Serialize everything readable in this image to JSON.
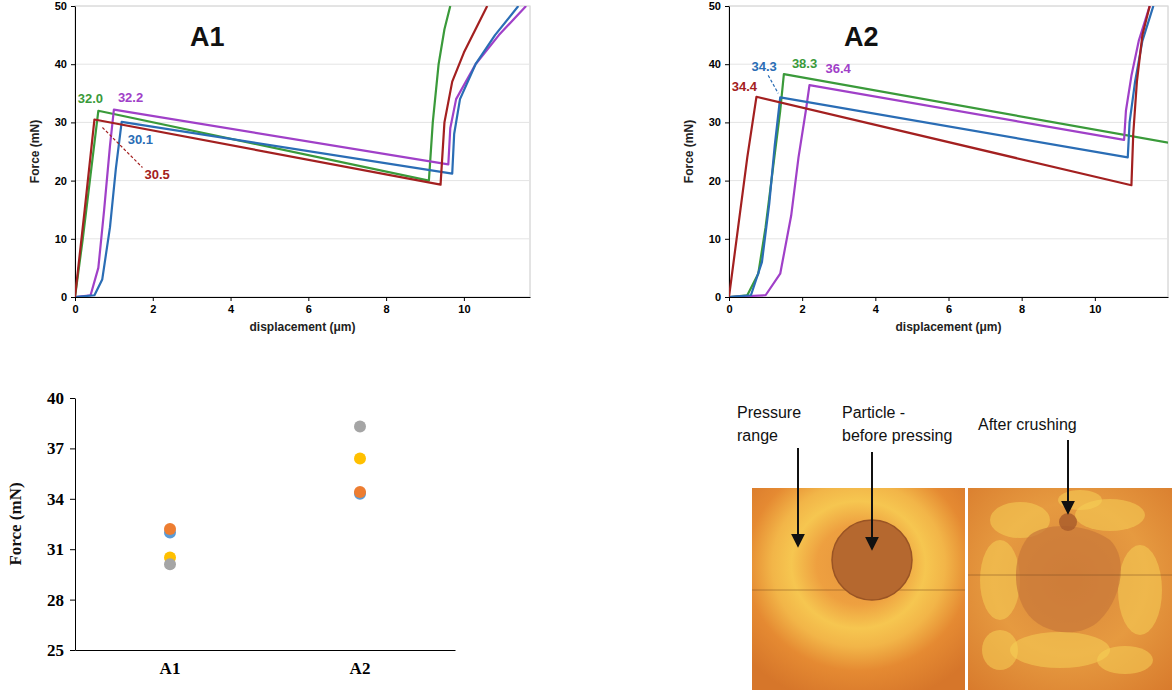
{
  "chart_data": [
    {
      "type": "line",
      "title": "A1",
      "x_label": "displacement (μm)",
      "y_label": "Force (mN)",
      "xlim": [
        0,
        11.7
      ],
      "xticks": [
        0,
        2,
        4,
        6,
        8,
        10
      ],
      "ylim": [
        0,
        50
      ],
      "yticks": [
        0,
        10,
        20,
        30,
        40,
        50
      ],
      "grid": true,
      "series": [
        {
          "color": "#3a9a3a",
          "x": [
            0,
            0.2,
            0.4,
            0.6,
            9.1,
            9.2,
            9.35,
            9.5,
            9.65
          ],
          "values": [
            0,
            10,
            21,
            32.0,
            20.0,
            30,
            40,
            46,
            50
          ],
          "peak": {
            "x": 0.6,
            "y": 32.0,
            "label": "32.0"
          }
        },
        {
          "color": "#a040c8",
          "x": [
            0,
            0.4,
            0.6,
            0.75,
            0.9,
            1.0,
            9.6,
            9.65,
            9.8,
            10.3,
            10.9,
            11.6
          ],
          "values": [
            0,
            0.3,
            5,
            15,
            26,
            32.2,
            22.8,
            29,
            34,
            40,
            45,
            50
          ],
          "peak": {
            "x": 1.0,
            "y": 32.2,
            "label": "32.2"
          }
        },
        {
          "color": "#2a6db5",
          "x": [
            0,
            0.5,
            0.7,
            0.9,
            1.05,
            1.2,
            9.7,
            9.75,
            9.9,
            10.3,
            10.8,
            11.4
          ],
          "values": [
            0,
            0.3,
            3,
            12,
            22,
            30.1,
            21.2,
            28,
            34,
            40,
            45,
            50
          ],
          "peak": {
            "x": 1.2,
            "y": 30.1,
            "label": "30.1"
          }
        },
        {
          "color": "#a32020",
          "x": [
            0,
            0.25,
            0.5,
            9.4,
            9.5,
            9.7,
            10.0,
            10.3,
            10.6
          ],
          "values": [
            0,
            15,
            30.5,
            19.3,
            30,
            37,
            42,
            46,
            50
          ],
          "peak": {
            "x": 0.5,
            "y": 30.5,
            "label": "30.5"
          }
        }
      ]
    },
    {
      "type": "line",
      "title": "A2",
      "x_label": "displacement (μm)",
      "y_label": "Force (mN)",
      "xlim": [
        0,
        12
      ],
      "xticks": [
        0,
        2,
        4,
        6,
        8,
        10
      ],
      "ylim": [
        0,
        50
      ],
      "yticks": [
        0,
        10,
        20,
        30,
        40,
        50
      ],
      "grid": true,
      "series": [
        {
          "color": "#3a9a3a",
          "x": [
            0,
            0.5,
            0.8,
            1.0,
            1.2,
            1.4,
            1.5,
            12.2
          ],
          "values": [
            0,
            0.3,
            4,
            12,
            22,
            32,
            38.3,
            26.3
          ],
          "peak": {
            "x": 1.5,
            "y": 38.3,
            "label": "38.3"
          }
        },
        {
          "color": "#a040c8",
          "x": [
            0,
            1.0,
            1.4,
            1.7,
            1.9,
            2.1,
            2.2,
            10.8,
            10.85,
            11.0,
            11.2,
            11.5
          ],
          "values": [
            0,
            0.3,
            4,
            14,
            24,
            32,
            36.4,
            27.0,
            32,
            38,
            44,
            50
          ],
          "peak": {
            "x": 2.2,
            "y": 36.4,
            "label": "36.4"
          }
        },
        {
          "color": "#2a6db5",
          "x": [
            0,
            0.6,
            0.9,
            1.1,
            1.25,
            1.4,
            10.9,
            10.95,
            11.1,
            11.3,
            11.6
          ],
          "values": [
            0,
            0.3,
            6,
            16,
            26,
            34.3,
            24.0,
            30,
            37,
            44,
            50
          ],
          "peak": {
            "x": 1.4,
            "y": 34.3,
            "label": "34.3"
          }
        },
        {
          "color": "#a32020",
          "x": [
            0,
            0.25,
            0.5,
            0.75,
            11.0,
            11.05,
            11.15,
            11.3,
            11.5
          ],
          "values": [
            0,
            12,
            24,
            34.4,
            19.2,
            28,
            37,
            45,
            50
          ],
          "peak": {
            "x": 0.75,
            "y": 34.4,
            "label": "34.4"
          }
        }
      ]
    },
    {
      "type": "scatter",
      "y_label": "Force (mN)",
      "categories": [
        "A1",
        "A2"
      ],
      "ylim": [
        25,
        40
      ],
      "yticks": [
        25,
        28,
        31,
        34,
        37,
        40
      ],
      "grid": false,
      "series": [
        {
          "color": "#5b9bd5",
          "values": [
            32.0,
            34.3
          ]
        },
        {
          "color": "#ed7d31",
          "values": [
            32.2,
            34.4
          ]
        },
        {
          "color": "#ffc000",
          "values": [
            30.5,
            36.4
          ]
        },
        {
          "color": "#a5a5a5",
          "values": [
            30.1,
            38.3
          ]
        }
      ]
    }
  ],
  "image_panel": {
    "labels": [
      "Pressure range",
      "Particle - before pressing",
      "After crushing"
    ]
  }
}
